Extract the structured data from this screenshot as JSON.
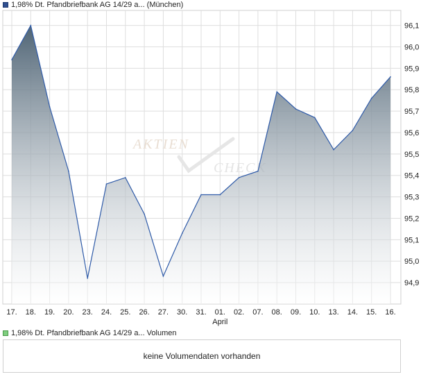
{
  "legend": {
    "price_label": "1,98% Dt. Pfandbriefbank AG 14/29 a... (München)",
    "volume_label": "1,98% Dt. Pfandbriefbank AG 14/29 a... Volumen"
  },
  "watermark": {
    "line1": "AKTIEN",
    "line2": "CHECK"
  },
  "volume_box": {
    "message": "keine Volumendaten vorhanden"
  },
  "colors": {
    "line": "#2e5aa8",
    "area_top": "#4f6475",
    "area_bottom": "#ffffff",
    "grid": "#dedede"
  },
  "chart_data": {
    "type": "area",
    "x_ticks": [
      "17.",
      "18.",
      "19.",
      "20.",
      "23.",
      "24.",
      "25.",
      "26.",
      "27.",
      "30.",
      "31.",
      "01.",
      "02.",
      "07.",
      "08.",
      "09.",
      "10.",
      "13.",
      "14.",
      "15.",
      "16."
    ],
    "x_month_label": "April",
    "x_month_label_at": "01.",
    "y_ticks": [
      "94,9",
      "95,0",
      "95,1",
      "95,2",
      "95,3",
      "95,4",
      "95,5",
      "95,6",
      "95,7",
      "95,8",
      "95,9",
      "96,0",
      "96,1"
    ],
    "series": [
      {
        "values": [
          95.94,
          96.1,
          95.72,
          95.42,
          94.92,
          95.36,
          95.39,
          95.22,
          94.93,
          95.13,
          95.31,
          95.31,
          95.39,
          95.42,
          95.79,
          95.71,
          95.67,
          95.52,
          95.61,
          95.76,
          95.86
        ]
      }
    ],
    "ylim": [
      94.8,
      96.17
    ],
    "grid": true
  }
}
